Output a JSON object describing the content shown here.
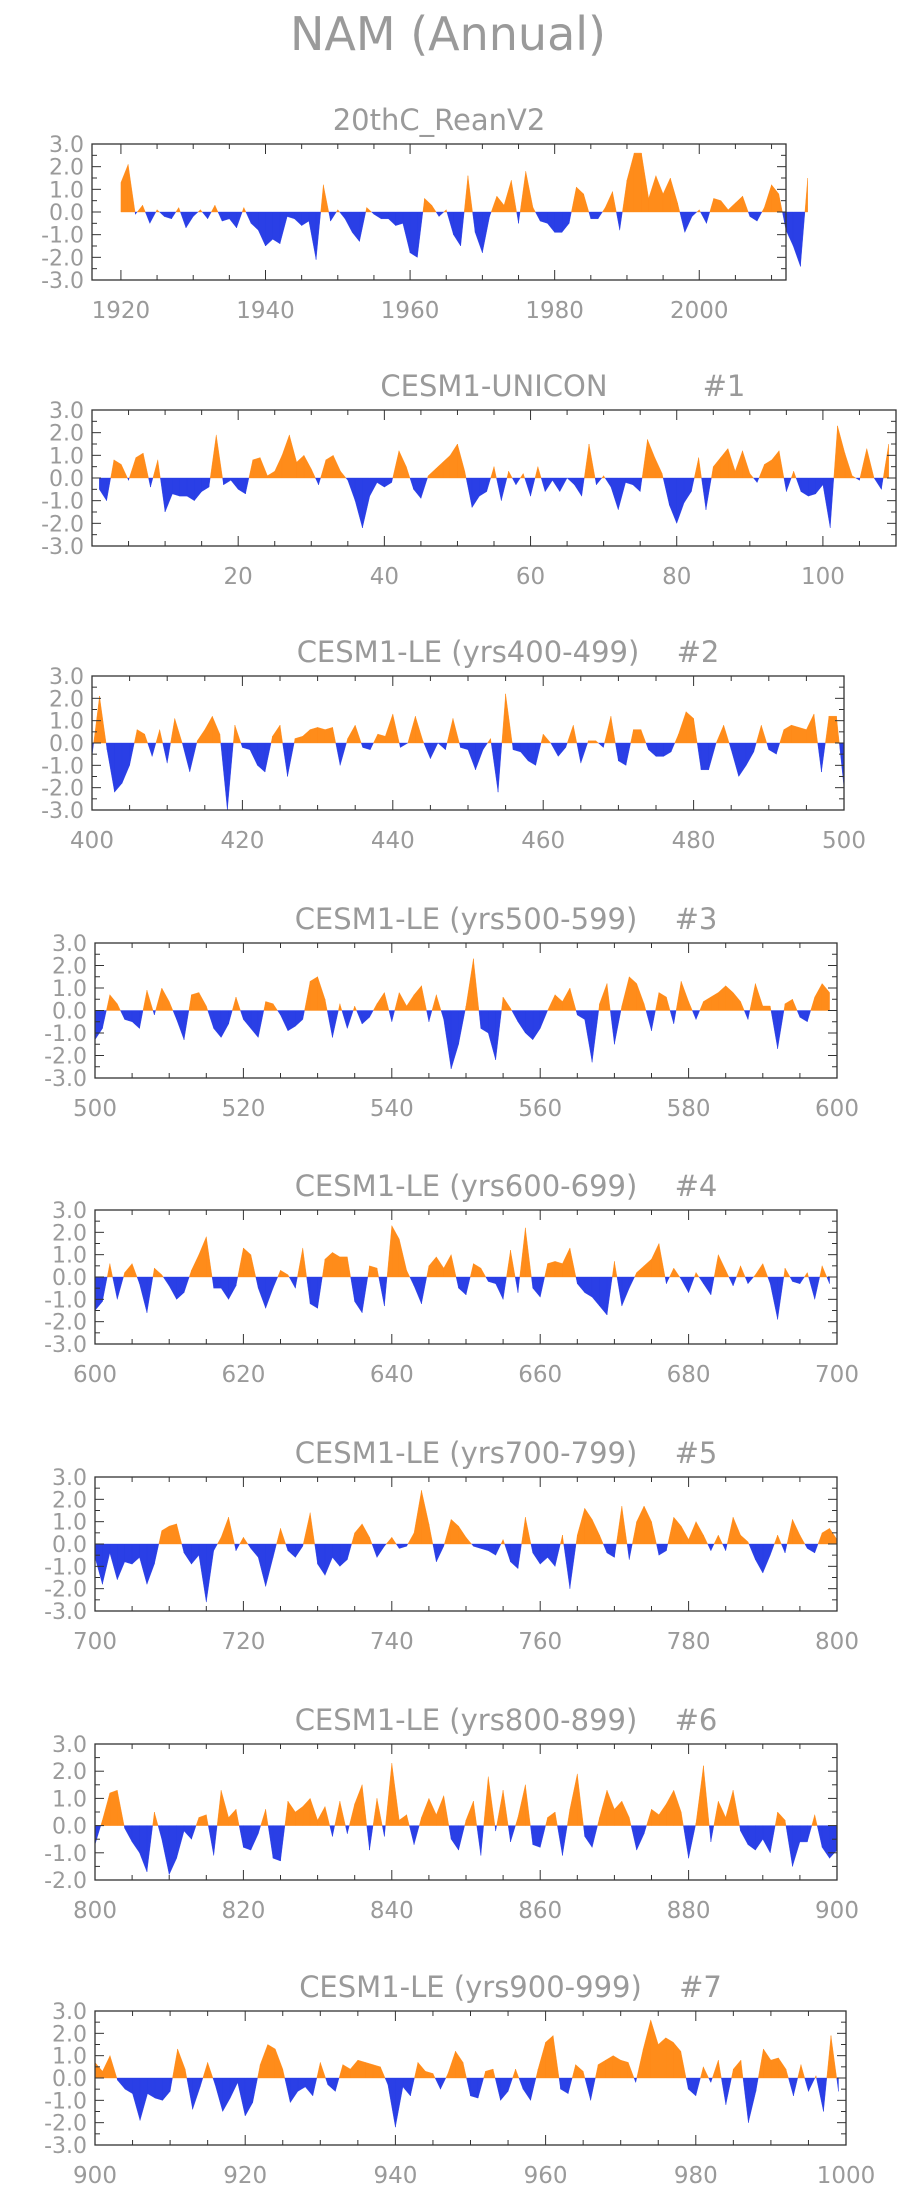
{
  "title": "NAM (Annual)",
  "colors": {
    "positive": "#ff8c1a",
    "negative": "#2a3fe6",
    "axis": "#333333",
    "text": "#9a9a9a"
  },
  "chart_data": [
    {
      "type": "area",
      "title": "20thC_ReanV2",
      "label": "",
      "xlim": [
        1916,
        2012
      ],
      "ylim": [
        -3,
        3
      ],
      "xticks": [
        "1920",
        "1940",
        "1960",
        "1980",
        "2000"
      ],
      "yticks": [
        "3.0",
        "2.0",
        "1.0",
        "0.0",
        "-1.0",
        "-2.0",
        "-3.0"
      ],
      "x_start": 1920,
      "values": [
        1.3,
        2.1,
        -0.1,
        0.3,
        -0.5,
        0.1,
        -0.2,
        -0.3,
        0.2,
        -0.7,
        -0.2,
        0.1,
        -0.3,
        0.3,
        -0.4,
        -0.3,
        -0.7,
        0.2,
        -0.5,
        -0.8,
        -1.5,
        -1.2,
        -1.4,
        -0.2,
        -0.3,
        -0.6,
        -0.4,
        -2.1,
        1.2,
        -0.4,
        0.1,
        -0.3,
        -0.9,
        -1.3,
        0.2,
        -0.1,
        -0.3,
        -0.3,
        -0.6,
        -0.5,
        -1.8,
        -2.0,
        0.6,
        0.3,
        -0.2,
        0.1,
        -1.0,
        -1.5,
        1.6,
        -0.9,
        -1.8,
        -0.2,
        0.7,
        0.3,
        1.4,
        -0.5,
        1.8,
        0.2,
        -0.4,
        -0.5,
        -0.9,
        -0.9,
        -0.5,
        1.1,
        0.8,
        -0.3,
        -0.3,
        0.2,
        0.9,
        -0.8,
        1.4,
        2.6,
        2.6,
        0.6,
        1.6,
        0.8,
        1.5,
        0.4,
        -0.9,
        -0.2,
        0.1,
        -0.5,
        0.6,
        0.5,
        0.1,
        0.4,
        0.7,
        -0.2,
        -0.4,
        0.2,
        1.2,
        0.8,
        -0.8,
        -1.5,
        -2.4,
        1.5
      ]
    },
    {
      "type": "area",
      "title": "CESM1-UNICON",
      "label": "#1",
      "xlim": [
        0,
        110
      ],
      "ylim": [
        -3,
        3
      ],
      "xticks": [
        "20",
        "40",
        "60",
        "80",
        "100"
      ],
      "yticks": [
        "3.0",
        "2.0",
        "1.0",
        "0.0",
        "-1.0",
        "-2.0",
        "-3.0"
      ],
      "x_start": 1,
      "values": [
        -0.5,
        -1.0,
        0.8,
        0.6,
        -0.1,
        0.9,
        1.1,
        -0.4,
        0.8,
        -1.5,
        -0.7,
        -0.8,
        -0.8,
        -1.0,
        -0.6,
        -0.4,
        1.9,
        -0.3,
        -0.1,
        -0.5,
        -0.7,
        0.8,
        0.9,
        0.1,
        0.3,
        1.0,
        1.9,
        0.7,
        1.0,
        0.4,
        -0.3,
        0.8,
        1.0,
        0.3,
        -0.1,
        -1.0,
        -2.2,
        -0.8,
        -0.2,
        -0.4,
        -0.2,
        1.2,
        0.5,
        -0.5,
        -0.9,
        0.1,
        0.4,
        0.7,
        1.0,
        1.5,
        0.3,
        -1.3,
        -0.8,
        -0.6,
        0.5,
        -1.0,
        0.3,
        -0.3,
        0.2,
        -0.8,
        0.5,
        -0.6,
        -0.1,
        -0.6,
        0.0,
        -0.3,
        -0.8,
        1.5,
        -0.3,
        0.1,
        -0.4,
        -1.4,
        -0.2,
        -0.3,
        -0.6,
        1.7,
        0.9,
        0.2,
        -1.2,
        -2.0,
        -1.1,
        -0.6,
        0.9,
        -1.4,
        0.5,
        0.9,
        1.3,
        0.3,
        1.2,
        0.2,
        -0.2,
        0.6,
        0.8,
        1.2,
        -0.6,
        0.3,
        -0.6,
        -0.8,
        -0.7,
        -0.3,
        -2.2,
        2.3,
        1.1,
        0.1,
        -0.1,
        1.3,
        0.0,
        -0.5,
        1.5
      ]
    },
    {
      "type": "area",
      "title": "CESM1-LE (yrs400-499)",
      "label": "#2",
      "xlim": [
        400,
        500
      ],
      "ylim": [
        -3,
        3
      ],
      "xticks": [
        "400",
        "420",
        "440",
        "460",
        "480",
        "500"
      ],
      "yticks": [
        "3.0",
        "2.0",
        "1.0",
        "0.0",
        "-1.0",
        "-2.0",
        "-3.0"
      ],
      "x_start": 400,
      "values": [
        -0.6,
        2.1,
        -0.3,
        -2.2,
        -1.8,
        -1.0,
        0.6,
        0.4,
        -0.6,
        0.6,
        -0.9,
        1.1,
        0.0,
        -1.3,
        0.1,
        0.6,
        1.2,
        0.4,
        -3.0,
        0.8,
        -0.2,
        -0.3,
        -1.0,
        -1.3,
        0.3,
        0.8,
        -1.5,
        0.2,
        0.3,
        0.6,
        0.7,
        0.6,
        0.7,
        -1.0,
        0.2,
        0.8,
        -0.2,
        -0.3,
        0.4,
        0.3,
        1.3,
        -0.2,
        0.0,
        1.2,
        0.1,
        -0.7,
        0.0,
        -0.3,
        1.1,
        -0.2,
        -0.3,
        -1.2,
        -0.3,
        0.2,
        -2.2,
        2.2,
        -0.3,
        -0.4,
        -0.8,
        -1.0,
        0.4,
        0.0,
        -0.6,
        -0.2,
        0.8,
        -0.9,
        0.1,
        0.1,
        -0.2,
        1.2,
        -0.8,
        -1.0,
        0.6,
        0.6,
        -0.3,
        -0.6,
        -0.6,
        -0.4,
        0.4,
        1.4,
        1.1,
        -1.2,
        -1.2,
        0.0,
        0.8,
        -0.3,
        -1.5,
        -1.0,
        -0.4,
        0.8,
        -0.3,
        -0.5,
        0.6,
        0.8,
        0.7,
        0.6,
        1.3,
        -1.3,
        1.2,
        1.2,
        -2.0
      ]
    },
    {
      "type": "area",
      "title": "CESM1-LE (yrs500-599)",
      "label": "#3",
      "xlim": [
        500,
        600
      ],
      "ylim": [
        -3,
        3
      ],
      "xticks": [
        "500",
        "520",
        "540",
        "560",
        "580",
        "600"
      ],
      "yticks": [
        "3.0",
        "2.0",
        "1.0",
        "0.0",
        "-1.0",
        "-2.0",
        "-3.0"
      ],
      "x_start": 500,
      "values": [
        -1.3,
        -0.8,
        0.7,
        0.3,
        -0.4,
        -0.5,
        -0.8,
        0.9,
        -0.2,
        1.0,
        0.4,
        -0.4,
        -1.3,
        0.7,
        0.8,
        0.2,
        -0.8,
        -1.2,
        -0.6,
        0.6,
        -0.4,
        -0.8,
        -1.2,
        0.4,
        0.3,
        -0.2,
        -0.9,
        -0.7,
        -0.4,
        1.3,
        1.5,
        0.5,
        -1.2,
        0.3,
        -0.8,
        0.2,
        -0.6,
        -0.3,
        0.3,
        0.8,
        -0.5,
        0.8,
        0.2,
        0.7,
        1.1,
        -0.5,
        0.7,
        -0.4,
        -2.6,
        -1.5,
        0.2,
        2.3,
        -0.8,
        -1.0,
        -2.2,
        0.6,
        0.1,
        -0.5,
        -1.0,
        -1.3,
        -0.8,
        0.0,
        0.7,
        0.4,
        1.0,
        -0.2,
        -0.4,
        -2.3,
        0.3,
        1.2,
        -1.5,
        0.2,
        1.5,
        1.2,
        0.3,
        -0.9,
        0.8,
        0.6,
        -0.6,
        1.3,
        0.4,
        -0.4,
        0.4,
        0.6,
        0.8,
        1.1,
        0.8,
        0.4,
        -0.4,
        1.2,
        0.2,
        0.2,
        -1.7,
        0.3,
        0.5,
        -0.3,
        -0.5,
        0.6,
        1.2,
        0.8
      ]
    },
    {
      "type": "area",
      "title": "CESM1-LE (yrs600-699)",
      "label": "#4",
      "xlim": [
        600,
        700
      ],
      "ylim": [
        -3,
        3
      ],
      "xticks": [
        "600",
        "620",
        "640",
        "660",
        "680",
        "700"
      ],
      "yticks": [
        "3.0",
        "2.0",
        "1.0",
        "0.0",
        "-1.0",
        "-2.0",
        "-3.0"
      ],
      "x_start": 600,
      "values": [
        -1.5,
        -1.1,
        0.6,
        -1.0,
        0.2,
        0.6,
        -0.3,
        -1.6,
        0.4,
        0.1,
        -0.4,
        -1.0,
        -0.7,
        0.3,
        1.0,
        1.8,
        -0.5,
        -0.5,
        -1.0,
        -0.4,
        1.3,
        1.0,
        -0.5,
        -1.4,
        -0.5,
        0.3,
        0.1,
        -0.5,
        1.3,
        -1.2,
        -1.4,
        0.8,
        1.1,
        0.9,
        0.9,
        -1.1,
        -1.6,
        0.5,
        0.4,
        -1.3,
        2.3,
        1.7,
        0.3,
        -0.4,
        -1.2,
        0.5,
        0.9,
        0.4,
        1.0,
        -0.5,
        -0.8,
        0.6,
        0.4,
        -0.2,
        -0.3,
        -1.0,
        1.2,
        -0.7,
        2.2,
        -0.5,
        -0.9,
        0.6,
        0.7,
        0.6,
        1.3,
        -0.3,
        -0.7,
        -0.9,
        -1.3,
        -1.7,
        0.7,
        -1.3,
        -0.5,
        0.2,
        0.5,
        0.8,
        1.5,
        -0.3,
        0.4,
        -0.1,
        -0.7,
        0.2,
        -0.3,
        -0.8,
        1.0,
        0.3,
        -0.4,
        0.5,
        -0.3,
        0.1,
        0.6,
        -0.3,
        -1.9,
        0.4,
        -0.2,
        -0.3,
        0.2,
        -1.0,
        0.5,
        -0.3
      ]
    },
    {
      "type": "area",
      "title": "CESM1-LE (yrs700-799)",
      "label": "#5",
      "xlim": [
        700,
        800
      ],
      "ylim": [
        -3,
        3
      ],
      "xticks": [
        "700",
        "720",
        "740",
        "760",
        "780",
        "800"
      ],
      "yticks": [
        "3.0",
        "2.0",
        "1.0",
        "0.0",
        "-1.0",
        "-2.0",
        "-3.0"
      ],
      "x_start": 700,
      "values": [
        -0.6,
        -1.8,
        -0.4,
        -1.6,
        -0.8,
        -0.9,
        -0.6,
        -1.8,
        -0.9,
        0.6,
        0.8,
        0.9,
        -0.4,
        -0.9,
        -0.5,
        -2.6,
        -0.3,
        0.3,
        1.2,
        -0.3,
        0.3,
        -0.2,
        -0.6,
        -1.9,
        -0.6,
        0.7,
        -0.3,
        -0.6,
        -0.1,
        1.4,
        -0.9,
        -1.4,
        -0.6,
        -1.0,
        -0.7,
        0.5,
        0.9,
        0.3,
        -0.6,
        -0.1,
        0.3,
        -0.2,
        -0.1,
        0.5,
        2.4,
        0.9,
        -0.8,
        -0.1,
        1.1,
        0.8,
        0.3,
        -0.1,
        -0.2,
        -0.3,
        -0.5,
        0.2,
        -0.8,
        -1.1,
        1.2,
        -0.4,
        -0.9,
        -0.6,
        -1.0,
        0.4,
        -2.0,
        0.4,
        1.6,
        1.1,
        0.4,
        -0.4,
        -0.6,
        1.7,
        -0.7,
        1.0,
        1.7,
        1.0,
        -0.5,
        -0.3,
        1.2,
        0.8,
        0.2,
        1.0,
        0.4,
        -0.3,
        0.4,
        -0.3,
        1.2,
        0.4,
        0.1,
        -0.7,
        -1.3,
        -0.5,
        0.4,
        -0.4,
        1.1,
        0.4,
        -0.2,
        -0.4,
        0.5,
        0.7,
        0.2
      ]
    },
    {
      "type": "area",
      "title": "CESM1-LE (yrs800-899)",
      "label": "#6",
      "xlim": [
        800,
        900
      ],
      "ylim": [
        -2,
        3
      ],
      "xticks": [
        "800",
        "820",
        "840",
        "860",
        "880",
        "900"
      ],
      "yticks": [
        "3.0",
        "2.0",
        "1.0",
        "0.0",
        "-1.0",
        "-2.0"
      ],
      "x_start": 800,
      "values": [
        -0.7,
        0.2,
        1.2,
        1.3,
        -0.1,
        -0.6,
        -1.0,
        -1.7,
        0.5,
        -0.5,
        -1.8,
        -1.2,
        -0.2,
        -0.5,
        0.3,
        0.4,
        -1.1,
        1.3,
        0.3,
        0.6,
        -0.8,
        -0.9,
        -0.3,
        0.6,
        -1.2,
        -1.3,
        0.9,
        0.5,
        0.7,
        1.0,
        0.2,
        0.7,
        -0.4,
        0.9,
        -0.3,
        0.8,
        1.5,
        -0.9,
        1.0,
        -0.4,
        2.3,
        0.2,
        0.4,
        -0.7,
        0.3,
        1.0,
        0.4,
        1.1,
        -0.5,
        -0.9,
        0.2,
        0.9,
        -1.1,
        1.8,
        -0.2,
        1.3,
        -0.6,
        0.3,
        1.5,
        -0.7,
        -0.8,
        0.3,
        0.5,
        -1.1,
        0.6,
        1.9,
        -0.4,
        -0.8,
        0.3,
        1.3,
        0.6,
        0.9,
        0.3,
        -0.9,
        -0.3,
        0.6,
        0.4,
        0.8,
        1.3,
        0.5,
        -1.2,
        0.1,
        2.2,
        -0.6,
        0.9,
        0.3,
        1.3,
        -0.2,
        -0.7,
        -0.9,
        -0.5,
        -1.0,
        0.5,
        0.2,
        -1.5,
        -0.6,
        -0.6,
        0.4,
        -0.8,
        -1.2,
        -0.9
      ]
    },
    {
      "type": "area",
      "title": "CESM1-LE (yrs900-999)",
      "label": "#7",
      "xlim": [
        900,
        1000
      ],
      "ylim": [
        -3,
        3
      ],
      "xticks": [
        "900",
        "920",
        "940",
        "960",
        "980",
        "1000"
      ],
      "yticks": [
        "3.0",
        "2.0",
        "1.0",
        "0.0",
        "-1.0",
        "-2.0",
        "-3.0"
      ],
      "x_start": 900,
      "values": [
        0.7,
        0.3,
        1.0,
        -0.1,
        -0.5,
        -0.7,
        -1.9,
        -0.7,
        -0.9,
        -1.0,
        -0.6,
        1.3,
        0.4,
        -1.4,
        -0.4,
        0.7,
        -0.3,
        -1.5,
        -0.9,
        -0.2,
        -1.7,
        -1.1,
        0.6,
        1.5,
        1.3,
        0.4,
        -1.1,
        -0.6,
        -0.4,
        -0.8,
        0.7,
        -0.3,
        -0.6,
        0.6,
        0.4,
        0.8,
        0.7,
        0.6,
        0.5,
        -0.3,
        -2.2,
        -0.4,
        -0.8,
        0.7,
        0.3,
        0.2,
        -0.5,
        0.2,
        1.2,
        0.7,
        -0.8,
        -0.9,
        0.3,
        0.4,
        -1.0,
        -0.6,
        0.4,
        -0.5,
        -1.0,
        0.4,
        1.6,
        1.9,
        -0.5,
        -0.7,
        0.6,
        0.3,
        -1.0,
        0.6,
        0.8,
        1.0,
        0.8,
        0.7,
        -0.2,
        1.3,
        2.6,
        1.5,
        1.8,
        1.6,
        1.2,
        -0.5,
        -0.8,
        0.5,
        -0.2,
        0.8,
        -1.2,
        0.4,
        0.8,
        -2.0,
        -0.6,
        1.3,
        0.8,
        0.9,
        0.4,
        -0.8,
        0.6,
        -0.6,
        0.1,
        -1.5,
        1.9,
        -0.6
      ]
    }
  ]
}
